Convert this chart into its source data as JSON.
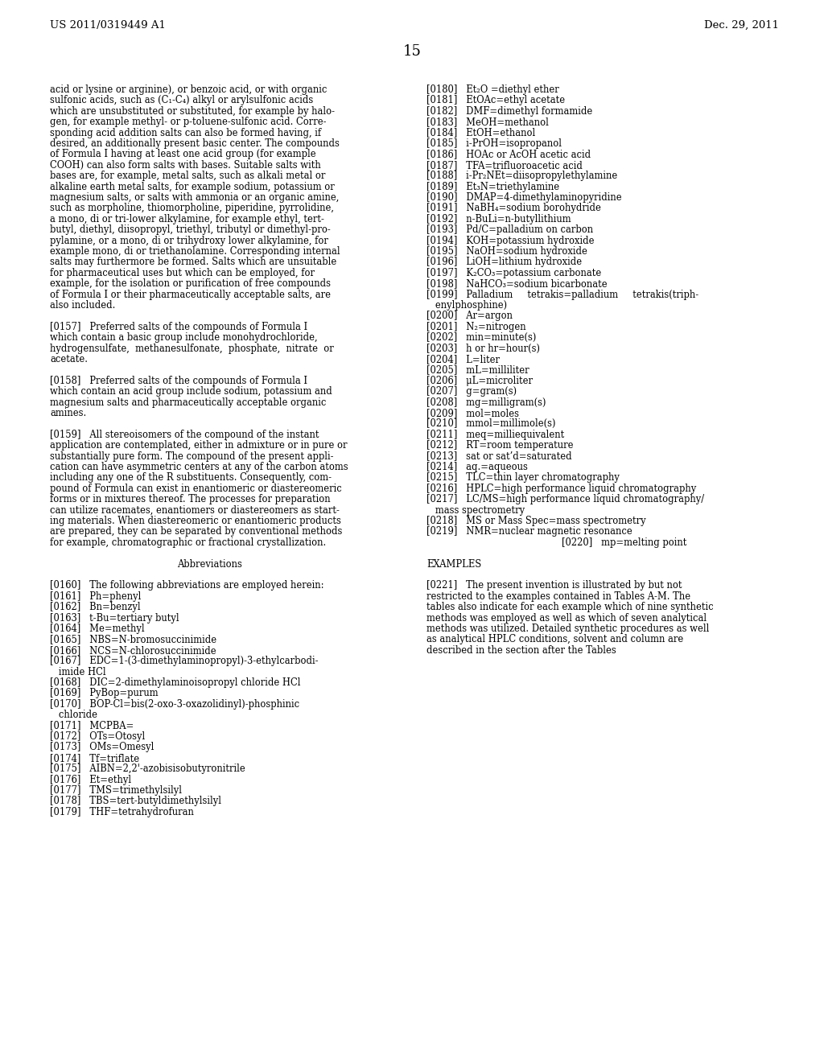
{
  "page_number": "15",
  "header_left": "US 2011/0319449 A1",
  "header_right": "Dec. 29, 2011",
  "background_color": "#ffffff",
  "text_color": "#000000",
  "left_col_lines": [
    "acid or lysine or arginine), or benzoic acid, or with organic",
    "sulfonic acids, such as (C₁-C₄) alkyl or arylsulfonic acids",
    "which are unsubstituted or substituted, for example by halo-",
    "gen, for example methyl- or p-toluene-sulfonic acid. Corre-",
    "sponding acid addition salts can also be formed having, if",
    "desired, an additionally present basic center. The compounds",
    "of Formula I having at least one acid group (for example",
    "COOH) can also form salts with bases. Suitable salts with",
    "bases are, for example, metal salts, such as alkali metal or",
    "alkaline earth metal salts, for example sodium, potassium or",
    "magnesium salts, or salts with ammonia or an organic amine,",
    "such as morpholine, thiomorpholine, piperidine, pyrrolidine,",
    "a mono, di or tri-lower alkylamine, for example ethyl, tert-",
    "butyl, diethyl, diisopropyl, triethyl, tributyl or dimethyl-pro-",
    "pylamine, or a mono, di or trihydroxy lower alkylamine, for",
    "example mono, di or triethanolamine. Corresponding internal",
    "salts may furthermore be formed. Salts which are unsuitable",
    "for pharmaceutical uses but which can be employed, for",
    "example, for the isolation or purification of free compounds",
    "of Formula I or their pharmaceutically acceptable salts, are",
    "also included.",
    "",
    "[0157]   Preferred salts of the compounds of Formula I",
    "which contain a basic group include monohydrochloride,",
    "hydrogensulfate,  methanesulfonate,  phosphate,  nitrate  or",
    "acetate.",
    "",
    "[0158]   Preferred salts of the compounds of Formula I",
    "which contain an acid group include sodium, potassium and",
    "magnesium salts and pharmaceutically acceptable organic",
    "amines.",
    "",
    "[0159]   All stereoisomers of the compound of the instant",
    "application are contemplated, either in admixture or in pure or",
    "substantially pure form. The compound of the present appli-",
    "cation can have asymmetric centers at any of the carbon atoms",
    "including any one of the R substituents. Consequently, com-",
    "pound of Formula can exist in enantiomeric or diastereomeric",
    "forms or in mixtures thereof. The processes for preparation",
    "can utilize racemates, enantiomers or diastereomers as start-",
    "ing materials. When diastereomeric or enantiomeric products",
    "are prepared, they can be separated by conventional methods",
    "for example, chromatographic or fractional crystallization.",
    "",
    "Abbreviations",
    "",
    "[0160]   The following abbreviations are employed herein:",
    "[0161]   Ph=phenyl",
    "[0162]   Bn=benzyl",
    "[0163]   t-Bu=tertiary butyl",
    "[0164]   Me=methyl",
    "[0165]   NBS=N-bromosuccinimide",
    "[0166]   NCS=N-chlorosuccinimide",
    "[0167]   EDC=1-(3-dimethylaminopropyl)-3-ethylcarbodi-",
    "   imide HCl",
    "[0168]   DIC=2-dimethylaminoisopropyl chloride HCl",
    "[0169]   PyBop=purum",
    "[0170]   BOP-Cl=bis(2-oxo-3-oxazolidinyl)-phosphinic",
    "   chloride",
    "[0171]   MCPBA=",
    "[0172]   OTs=Otosyl",
    "[0173]   OMs=Omesyl",
    "[0174]   Tf=triflate",
    "[0175]   AIBN=2,2'-azobisisobutyronitrile",
    "[0176]   Et=ethyl",
    "[0177]   TMS=trimethylsilyl",
    "[0178]   TBS=tert-butyldimethylsilyl",
    "[0179]   THF=tetrahydrofuran"
  ],
  "left_col_center_lines": [
    44
  ],
  "right_col_lines": [
    "[0180]   Et₂O =diethyl ether",
    "[0181]   EtOAc=ethyl acetate",
    "[0182]   DMF=dimethyl formamide",
    "[0183]   MeOH=methanol",
    "[0184]   EtOH=ethanol",
    "[0185]   i-PrOH=isopropanol",
    "[0186]   HOAc or AcOH acetic acid",
    "[0187]   TFA=trifluoroacetic acid",
    "[0188]   i-Pr₂NEt=diisopropylethylamine",
    "[0189]   Et₃N=triethylamine",
    "[0190]   DMAP=4-dimethylaminopyridine",
    "[0191]   NaBH₄=sodium borohydride",
    "[0192]   n-BuLi=n-butyllithium",
    "[0193]   Pd/C=palladium on carbon",
    "[0194]   KOH=potassium hydroxide",
    "[0195]   NaOH=sodium hydroxide",
    "[0196]   LiOH=lithium hydroxide",
    "[0197]   K₂CO₃=potassium carbonate",
    "[0198]   NaHCO₃=sodium bicarbonate",
    "[0199]   Palladium     tetrakis=palladium     tetrakis(triph-",
    "   enylphosphine)",
    "[0200]   Ar=argon",
    "[0201]   N₂=nitrogen",
    "[0202]   min=minute(s)",
    "[0203]   h or hr=hour(s)",
    "[0204]   L=liter",
    "[0205]   mL=milliliter",
    "[0206]   μL=microliter",
    "[0207]   g=gram(s)",
    "[0208]   mg=milligram(s)",
    "[0209]   mol=moles",
    "[0210]   mmol=millimole(s)",
    "[0211]   meq=milliequivalent",
    "[0212]   RT=room temperature",
    "[0213]   sat or sat’d=saturated",
    "[0214]   aq.=aqueous",
    "[0215]   TLC=thin layer chromatography",
    "[0216]   HPLC=high performance liquid chromatography",
    "[0217]   LC/MS=high performance liquid chromatography/",
    "   mass spectrometry",
    "[0218]   MS or Mass Spec=mass spectrometry",
    "[0219]   NMR=nuclear magnetic resonance",
    "[0220]   mp=melting point",
    "",
    "EXAMPLES",
    "",
    "[0221]   The present invention is illustrated by but not",
    "restricted to the examples contained in Tables A-M. The",
    "tables also indicate for each example which of nine synthetic",
    "methods was employed as well as which of seven analytical",
    "methods was utilized. Detailed synthetic procedures as well",
    "as analytical HPLC conditions, solvent and column are",
    "described in the section after the Tables"
  ],
  "right_col_center_lines": [
    42
  ]
}
